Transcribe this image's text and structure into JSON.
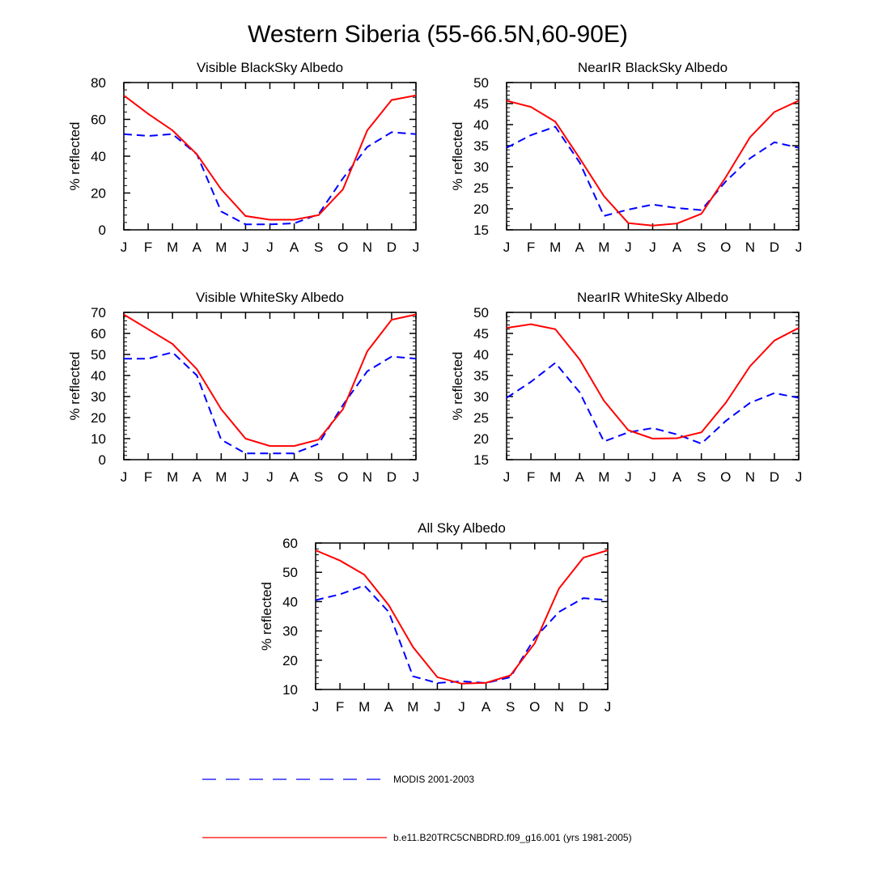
{
  "title": "Western Siberia (55-66.5N,60-90E)",
  "legend": [
    {
      "key": "modis",
      "label": "MODIS 2001-2003",
      "color": "#0000ff",
      "style": "dashed"
    },
    {
      "key": "model",
      "label": "b.e11.B20TRC5CNBDRD.f09_g16.001 (yrs 1981-2005)",
      "color": "#ff0000",
      "style": "solid"
    }
  ],
  "chart_data": [
    {
      "type": "line",
      "title": "Visible BlackSky Albedo",
      "ylabel": "% reflected",
      "categories": [
        "J",
        "F",
        "M",
        "A",
        "M",
        "J",
        "J",
        "A",
        "S",
        "O",
        "N",
        "D",
        "J"
      ],
      "ylim": [
        0,
        80
      ],
      "yticks": [
        0,
        20,
        40,
        60,
        80
      ],
      "series": [
        {
          "name": "MODIS 2001-2003",
          "values": [
            52,
            51,
            52,
            41,
            10,
            3,
            3,
            3.5,
            8.5,
            28,
            45,
            53,
            52
          ]
        },
        {
          "name": "b.e11.B20TRC5CNBDRD.f09_g16.001 (yrs 1981-2005)",
          "values": [
            73,
            63,
            54,
            41,
            22,
            7.5,
            5.5,
            5.5,
            8,
            22,
            54,
            70.5,
            73
          ]
        }
      ]
    },
    {
      "type": "line",
      "title": "NearIR BlackSky Albedo",
      "ylabel": "% reflected",
      "categories": [
        "J",
        "F",
        "M",
        "A",
        "M",
        "J",
        "J",
        "A",
        "S",
        "O",
        "N",
        "D",
        "J"
      ],
      "ylim": [
        15,
        50
      ],
      "yticks": [
        15,
        20,
        25,
        30,
        35,
        40,
        45,
        50
      ],
      "series": [
        {
          "name": "MODIS 2001-2003",
          "values": [
            34.5,
            37.5,
            39.5,
            31,
            18.3,
            19.8,
            21,
            20.2,
            19.7,
            26.5,
            32,
            35.8,
            34.5
          ]
        },
        {
          "name": "b.e11.B20TRC5CNBDRD.f09_g16.001 (yrs 1981-2005)",
          "values": [
            45.7,
            44.2,
            40.7,
            32,
            23,
            16.6,
            16,
            16.5,
            18.8,
            27.5,
            37,
            43,
            45.7
          ]
        }
      ]
    },
    {
      "type": "line",
      "title": "Visible WhiteSky Albedo",
      "ylabel": "% reflected",
      "categories": [
        "J",
        "F",
        "M",
        "A",
        "M",
        "J",
        "J",
        "A",
        "S",
        "O",
        "N",
        "D",
        "J"
      ],
      "ylim": [
        0,
        70
      ],
      "yticks": [
        0,
        10,
        20,
        30,
        40,
        50,
        60,
        70
      ],
      "series": [
        {
          "name": "MODIS 2001-2003",
          "values": [
            48,
            48,
            51,
            40,
            9.5,
            3,
            3,
            3,
            7.5,
            26,
            42,
            49,
            48
          ]
        },
        {
          "name": "b.e11.B20TRC5CNBDRD.f09_g16.001 (yrs 1981-2005)",
          "values": [
            69,
            62,
            55,
            43,
            24,
            10,
            6.5,
            6.5,
            9.5,
            24,
            51.5,
            66.5,
            69
          ]
        }
      ]
    },
    {
      "type": "line",
      "title": "NearIR WhiteSky Albedo",
      "ylabel": "% reflected",
      "categories": [
        "J",
        "F",
        "M",
        "A",
        "M",
        "J",
        "J",
        "A",
        "S",
        "O",
        "N",
        "D",
        "J"
      ],
      "ylim": [
        15,
        50
      ],
      "yticks": [
        15,
        20,
        25,
        30,
        35,
        40,
        45,
        50
      ],
      "series": [
        {
          "name": "MODIS 2001-2003",
          "values": [
            29.7,
            33.5,
            38,
            31,
            19.3,
            21.5,
            22.5,
            21,
            18.8,
            24.2,
            28.5,
            30.8,
            29.7
          ]
        },
        {
          "name": "b.e11.B20TRC5CNBDRD.f09_g16.001 (yrs 1981-2005)",
          "values": [
            46.3,
            47.2,
            46,
            38.8,
            29,
            22,
            20,
            20.1,
            21.5,
            28.5,
            37.2,
            43.3,
            46.3
          ]
        }
      ]
    },
    {
      "type": "line",
      "title": "All Sky Albedo",
      "ylabel": "% reflected",
      "categories": [
        "J",
        "F",
        "M",
        "A",
        "M",
        "J",
        "J",
        "A",
        "S",
        "O",
        "N",
        "D",
        "J"
      ],
      "ylim": [
        10,
        60
      ],
      "yticks": [
        10,
        20,
        30,
        40,
        50,
        60
      ],
      "series": [
        {
          "name": "MODIS 2001-2003",
          "values": [
            40.5,
            42.5,
            45.5,
            36.5,
            14.5,
            12.2,
            12.8,
            12.2,
            14.2,
            27.5,
            36.5,
            41.2,
            40.5
          ]
        },
        {
          "name": "b.e11.B20TRC5CNBDRD.f09_g16.001 (yrs 1981-2005)",
          "values": [
            57.5,
            54,
            49.2,
            38.8,
            24.5,
            14.2,
            12,
            12.3,
            14.8,
            25.8,
            44.5,
            55,
            57.5
          ]
        }
      ]
    }
  ]
}
